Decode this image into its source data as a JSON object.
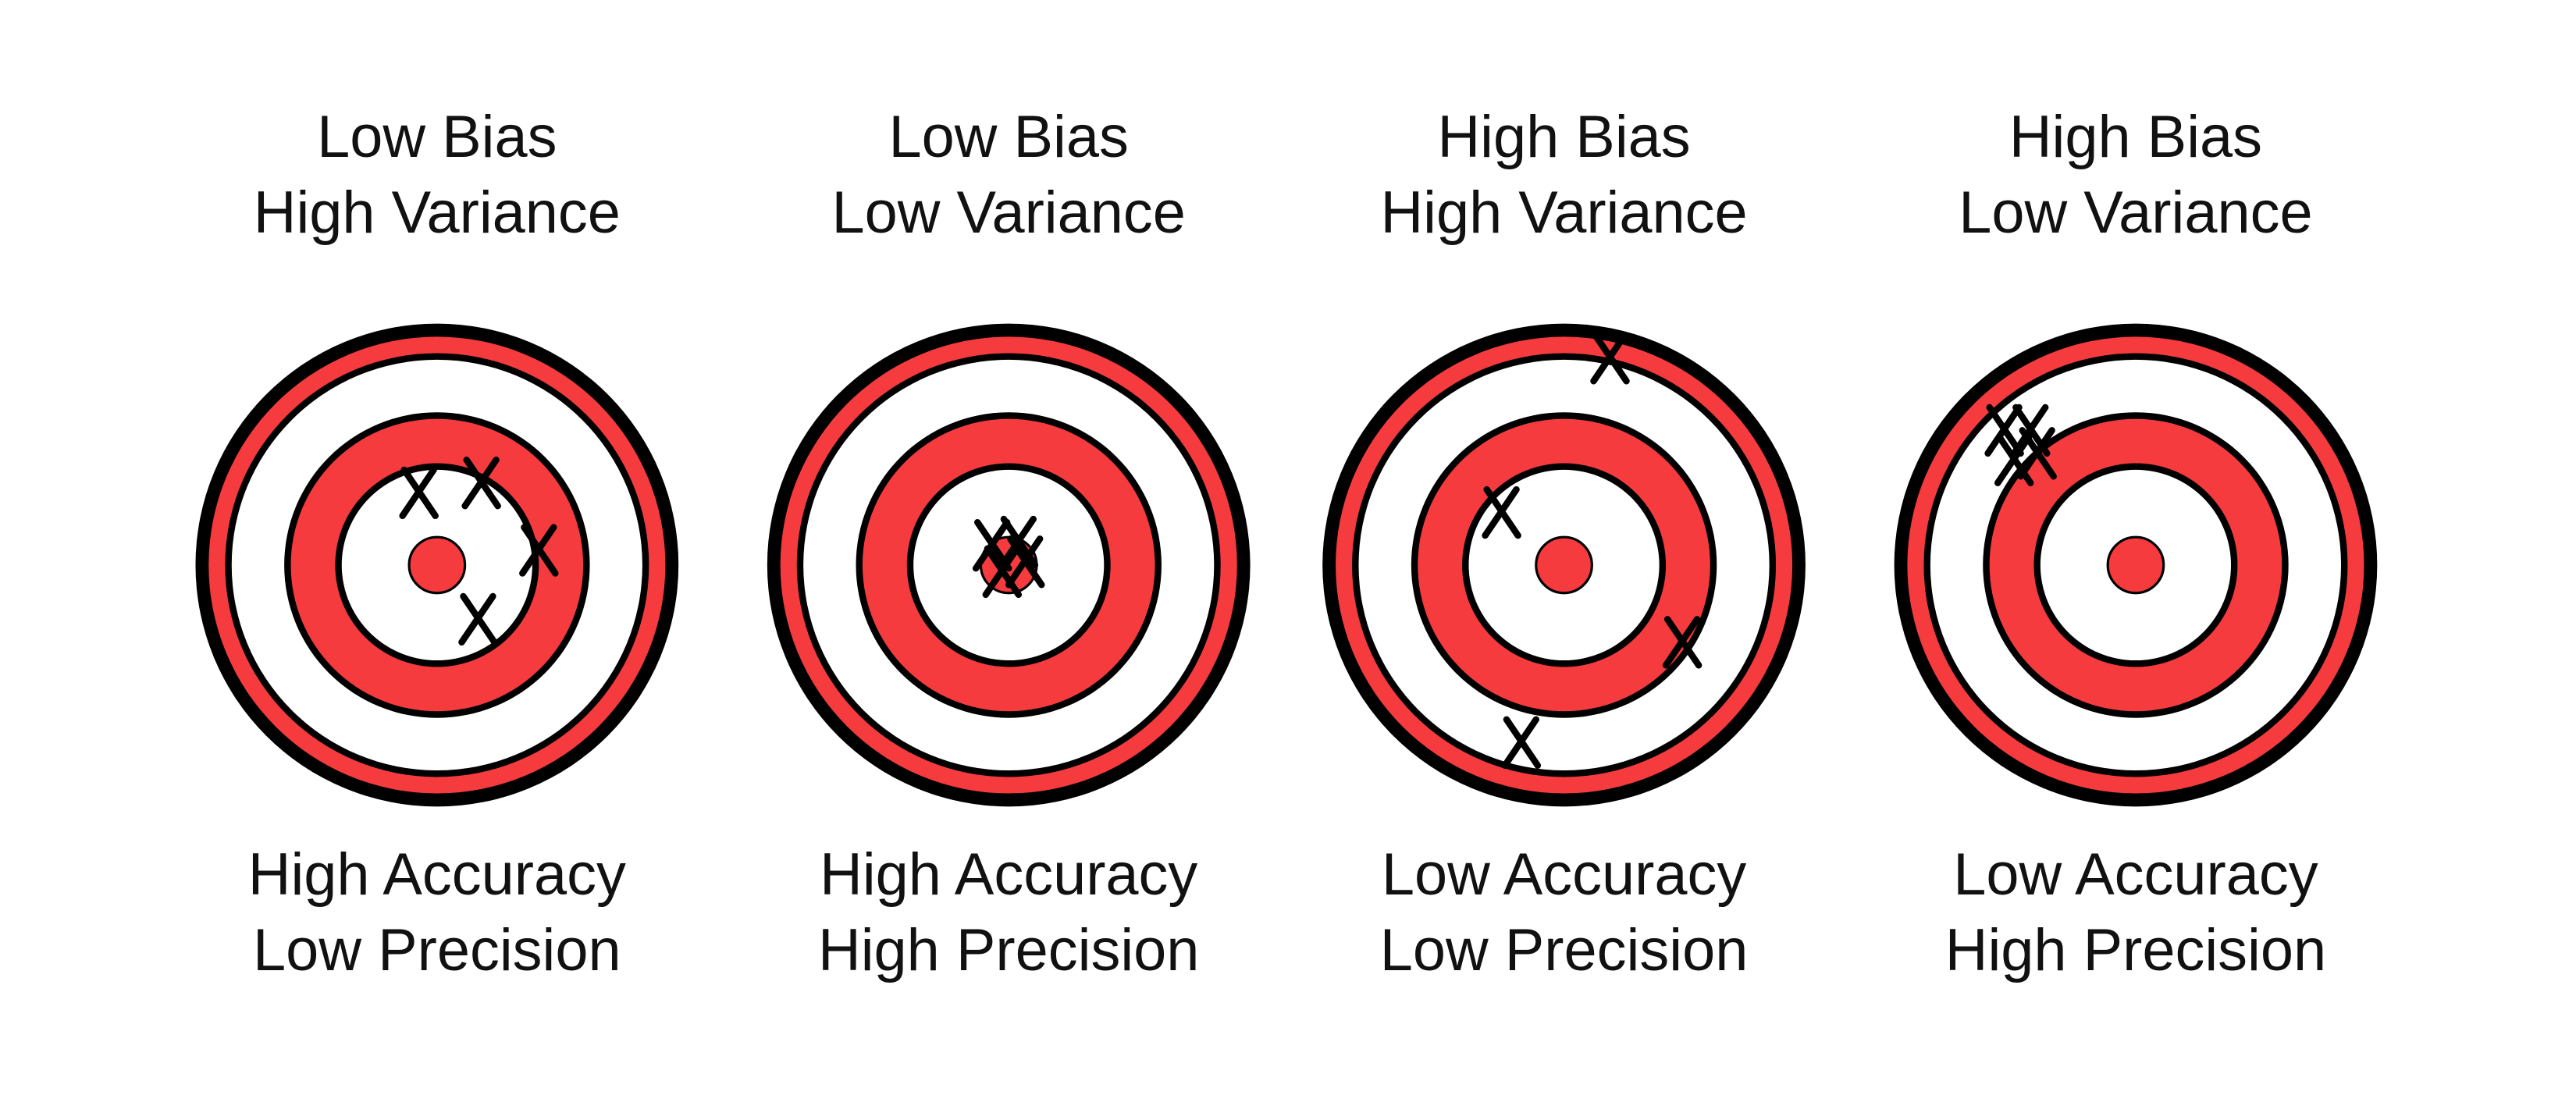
{
  "panels": [
    {
      "top": [
        "Low Bias",
        "High Variance"
      ],
      "bottom": [
        "High Accuracy",
        "Low Precision"
      ]
    },
    {
      "top": [
        "Low Bias",
        "Low Variance"
      ],
      "bottom": [
        "High Accuracy",
        "High Precision"
      ]
    },
    {
      "top": [
        "High Bias",
        "High Variance"
      ],
      "bottom": [
        "Low Accuracy",
        "Low Precision"
      ]
    },
    {
      "top": [
        "High Bias",
        "Low Variance"
      ],
      "bottom": [
        "Low Accuracy",
        "High Precision"
      ]
    }
  ]
}
